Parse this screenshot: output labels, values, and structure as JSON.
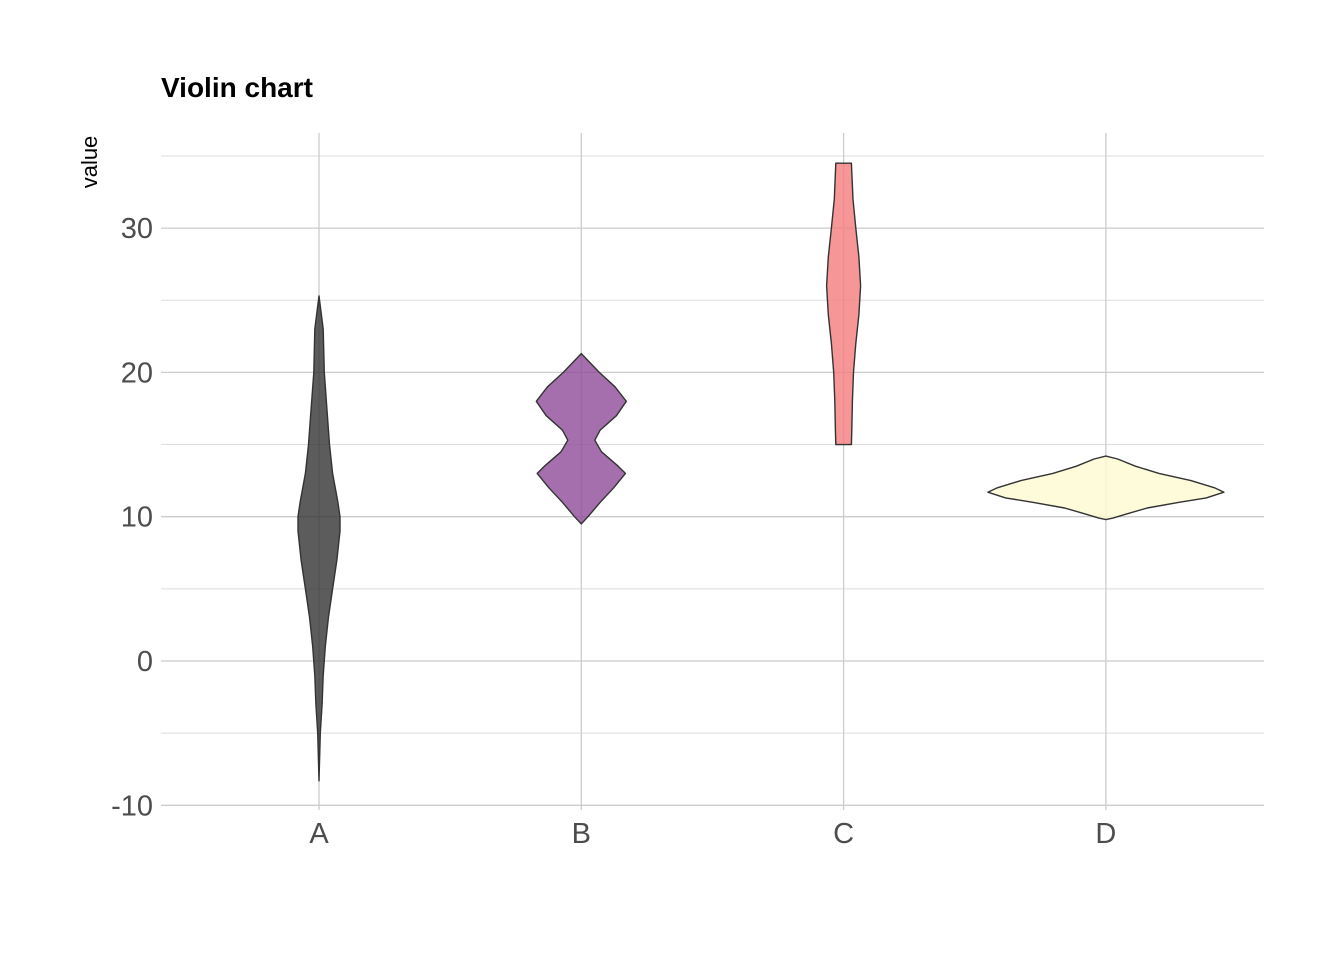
{
  "chart_data": {
    "type": "violin",
    "title": "Violin chart",
    "xlabel": "",
    "ylabel": "value",
    "ylim": [
      -10,
      36
    ],
    "yticks": [
      -10,
      0,
      10,
      20,
      30
    ],
    "grid": true,
    "legend": "none",
    "categories": [
      "A",
      "B",
      "C",
      "D"
    ],
    "series": [
      {
        "category": "A",
        "color": "#333333",
        "profile": [
          [
            25.3,
            0.0
          ],
          [
            23.0,
            0.2
          ],
          [
            20.0,
            0.25
          ],
          [
            17.0,
            0.4
          ],
          [
            15.0,
            0.5
          ],
          [
            13.0,
            0.65
          ],
          [
            11.0,
            0.9
          ],
          [
            10.0,
            1.0
          ],
          [
            9.0,
            1.0
          ],
          [
            7.0,
            0.85
          ],
          [
            5.0,
            0.65
          ],
          [
            3.0,
            0.45
          ],
          [
            1.0,
            0.3
          ],
          [
            -1.0,
            0.2
          ],
          [
            -3.0,
            0.15
          ],
          [
            -5.0,
            0.06
          ],
          [
            -8.3,
            0.0
          ]
        ]
      },
      {
        "category": "B",
        "color": "#8e4b99",
        "profile": [
          [
            21.3,
            0.0
          ],
          [
            20.0,
            0.4
          ],
          [
            19.0,
            0.75
          ],
          [
            18.0,
            1.0
          ],
          [
            17.0,
            0.78
          ],
          [
            16.0,
            0.42
          ],
          [
            15.3,
            0.3
          ],
          [
            14.5,
            0.45
          ],
          [
            13.5,
            0.82
          ],
          [
            13.0,
            0.98
          ],
          [
            12.0,
            0.72
          ],
          [
            11.0,
            0.42
          ],
          [
            10.0,
            0.15
          ],
          [
            9.5,
            0.0
          ]
        ]
      },
      {
        "category": "C",
        "color": "#f47c7c",
        "profile": [
          [
            34.5,
            0.46
          ],
          [
            32.0,
            0.55
          ],
          [
            30.0,
            0.72
          ],
          [
            28.0,
            0.9
          ],
          [
            26.0,
            1.0
          ],
          [
            24.0,
            0.9
          ],
          [
            22.0,
            0.72
          ],
          [
            20.0,
            0.58
          ],
          [
            18.0,
            0.52
          ],
          [
            16.0,
            0.48
          ],
          [
            15.0,
            0.46
          ]
        ]
      },
      {
        "category": "D",
        "color": "#fcfad0",
        "profile": [
          [
            14.2,
            0.0
          ],
          [
            14.0,
            0.1
          ],
          [
            13.5,
            0.25
          ],
          [
            13.0,
            0.45
          ],
          [
            12.5,
            0.72
          ],
          [
            12.0,
            0.92
          ],
          [
            11.7,
            1.0
          ],
          [
            11.3,
            0.85
          ],
          [
            11.0,
            0.62
          ],
          [
            10.6,
            0.35
          ],
          [
            10.2,
            0.18
          ],
          [
            9.9,
            0.06
          ],
          [
            9.8,
            0.0
          ]
        ]
      }
    ]
  }
}
